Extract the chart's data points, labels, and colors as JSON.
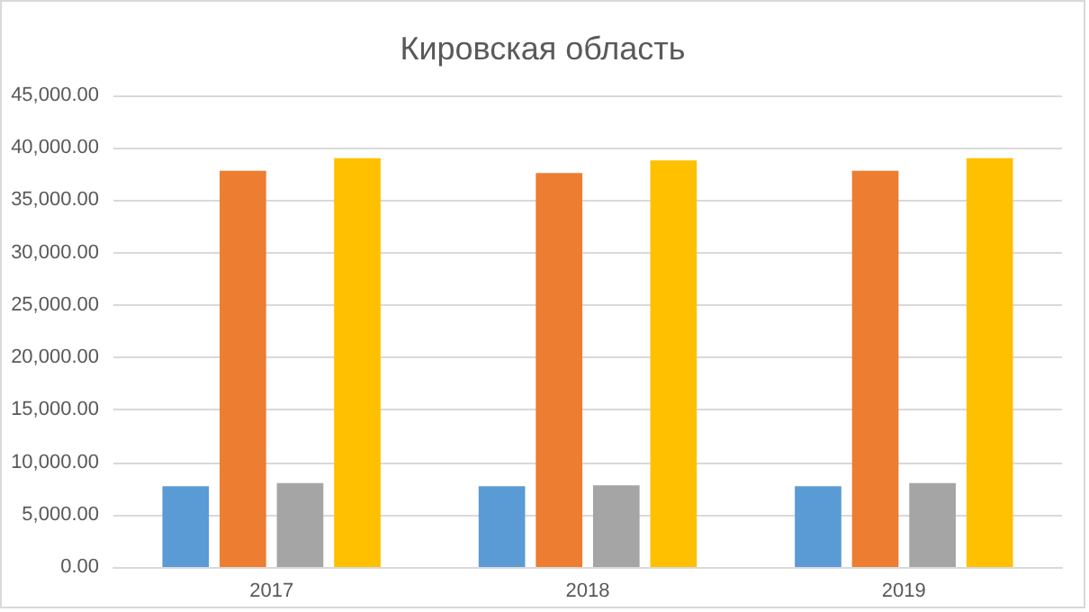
{
  "chart_data": {
    "type": "bar",
    "title": "Кировская область",
    "categories": [
      "2017",
      "2018",
      "2019"
    ],
    "series": [
      {
        "color": "#5b9bd5",
        "values": [
          7700,
          7700,
          7700
        ]
      },
      {
        "color": "#ed7d31",
        "values": [
          37800,
          37600,
          37800
        ]
      },
      {
        "color": "#a5a5a5",
        "values": [
          8000,
          7800,
          8000
        ]
      },
      {
        "color": "#ffc000",
        "values": [
          39000,
          38800,
          39000
        ]
      }
    ],
    "ylim": [
      0,
      45000
    ],
    "yticks": [
      {
        "value": 0,
        "label": "0.00"
      },
      {
        "value": 5000,
        "label": "5,000.00"
      },
      {
        "value": 10000,
        "label": "10,000.00"
      },
      {
        "value": 15000,
        "label": "15,000.00"
      },
      {
        "value": 20000,
        "label": "20,000.00"
      },
      {
        "value": 25000,
        "label": "25,000.00"
      },
      {
        "value": 30000,
        "label": "30,000.00"
      },
      {
        "value": 35000,
        "label": "35,000.00"
      },
      {
        "value": 40000,
        "label": "40,000.00"
      },
      {
        "value": 45000,
        "label": "45,000.00"
      }
    ],
    "grid": "y"
  }
}
